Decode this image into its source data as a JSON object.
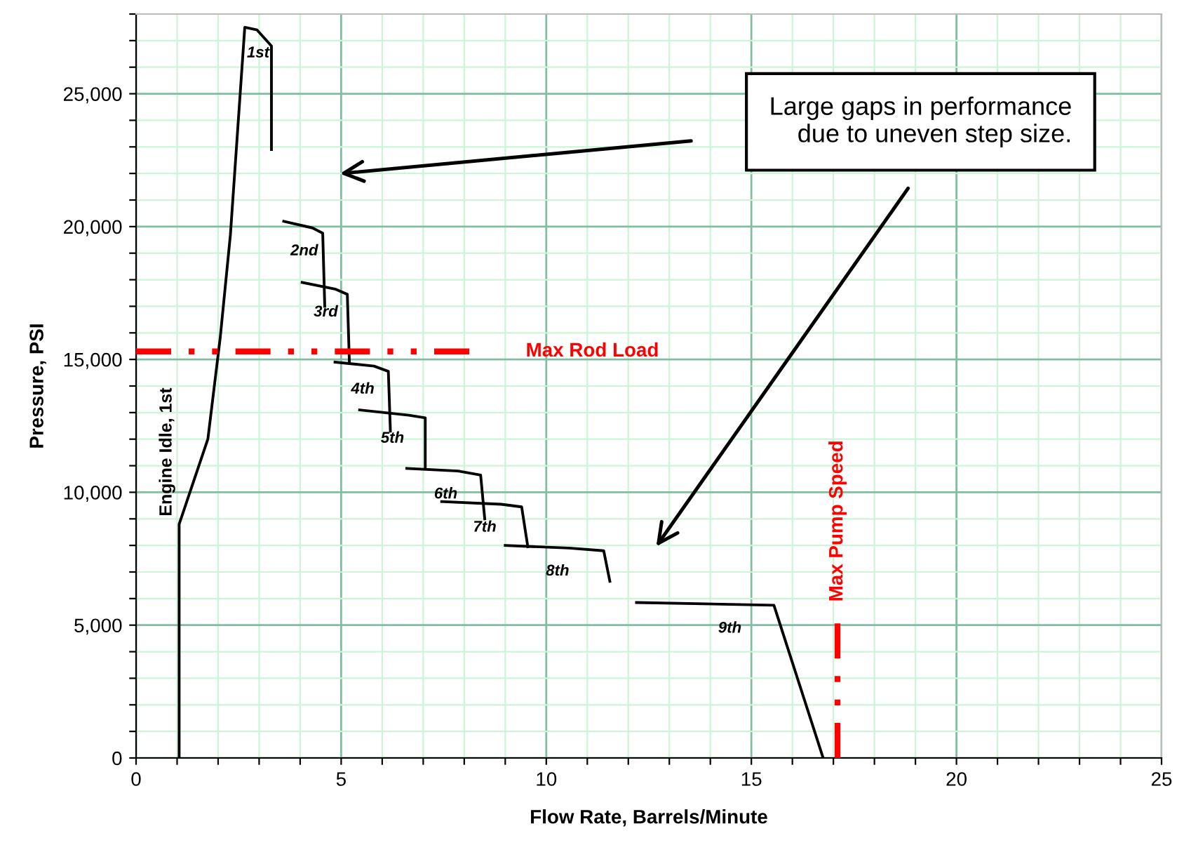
{
  "chart_data": {
    "type": "line",
    "xlabel": "Flow Rate, Barrels/Minute",
    "ylabel": "Pressure, PSI",
    "xlim": [
      0,
      25
    ],
    "ylim": [
      0,
      28000
    ],
    "xticks": [
      0,
      {
        "value": 1,
        "label": null
      },
      {
        "value": 2,
        "label": null
      },
      {
        "value": 3,
        "label": null
      },
      {
        "value": 4,
        "label": null
      },
      5,
      {
        "value": 6,
        "label": null
      },
      {
        "value": 7,
        "label": null
      },
      {
        "value": 8,
        "label": null
      },
      {
        "value": 9,
        "label": null
      },
      10,
      {
        "value": 11,
        "label": null
      },
      {
        "value": 12,
        "label": null
      },
      {
        "value": 13,
        "label": null
      },
      {
        "value": 14,
        "label": null
      },
      15,
      {
        "value": 16,
        "label": null
      },
      {
        "value": 17,
        "label": null
      },
      {
        "value": 18,
        "label": null
      },
      {
        "value": 19,
        "label": null
      },
      20,
      {
        "value": 21,
        "label": null
      },
      {
        "value": 22,
        "label": null
      },
      {
        "value": 23,
        "label": null
      },
      {
        "value": 24,
        "label": null
      },
      25
    ],
    "yticks": [
      0,
      {
        "value": 1000,
        "label": null
      },
      {
        "value": 2000,
        "label": null
      },
      {
        "value": 3000,
        "label": null
      },
      {
        "value": 4000,
        "label": null
      },
      {
        "value": 5000,
        "label": "5,000"
      },
      {
        "value": 6000,
        "label": null
      },
      {
        "value": 7000,
        "label": null
      },
      {
        "value": 8000,
        "label": null
      },
      {
        "value": 9000,
        "label": null
      },
      {
        "value": 10000,
        "label": "10,000"
      },
      {
        "value": 11000,
        "label": null
      },
      {
        "value": 12000,
        "label": null
      },
      {
        "value": 13000,
        "label": null
      },
      {
        "value": 14000,
        "label": null
      },
      {
        "value": 15000,
        "label": "15,000"
      },
      {
        "value": 16000,
        "label": null
      },
      {
        "value": 17000,
        "label": null
      },
      {
        "value": 18000,
        "label": null
      },
      {
        "value": 19000,
        "label": null
      },
      {
        "value": 20000,
        "label": "20,000"
      },
      {
        "value": 21000,
        "label": null
      },
      {
        "value": 22000,
        "label": null
      },
      {
        "value": 23000,
        "label": null
      },
      {
        "value": 24000,
        "label": null
      },
      {
        "value": 25000,
        "label": "25,000"
      },
      {
        "value": 26000,
        "label": null
      },
      {
        "value": 27000,
        "label": null
      },
      {
        "value": 28000,
        "label": null
      }
    ],
    "grid": true,
    "marker": "none",
    "line_style": "solid",
    "series": [
      {
        "color": "#000000",
        "x": [
          1.05,
          1.05,
          1.75,
          2.05,
          2.3,
          2.65,
          2.95,
          3.3,
          3.3
        ],
        "values": [
          0,
          8800,
          12000,
          15800,
          19700,
          27500,
          27400,
          26800,
          22900
        ]
      },
      {
        "color": "#000000",
        "x": [
          3.6,
          4.3,
          4.55,
          4.6
        ],
        "values": [
          20200,
          19950,
          19750,
          17000
        ]
      },
      {
        "color": "#000000",
        "x": [
          4.05,
          4.85,
          5.15,
          5.2
        ],
        "values": [
          17900,
          17650,
          17450,
          14900
        ]
      },
      {
        "color": "#000000",
        "x": [
          4.85,
          5.8,
          6.15,
          6.2
        ],
        "values": [
          14900,
          14750,
          14550,
          12300
        ]
      },
      {
        "color": "#000000",
        "x": [
          5.45,
          6.65,
          7.05,
          7.05
        ],
        "values": [
          13100,
          12900,
          12800,
          10900
        ]
      },
      {
        "color": "#000000",
        "x": [
          6.6,
          7.85,
          8.4,
          8.5
        ],
        "values": [
          10900,
          10800,
          10650,
          9000
        ]
      },
      {
        "color": "#000000",
        "x": [
          7.45,
          8.9,
          9.4,
          9.55
        ],
        "values": [
          9650,
          9550,
          9450,
          7950
        ]
      },
      {
        "color": "#000000",
        "x": [
          9.0,
          10.55,
          11.4,
          11.55
        ],
        "values": [
          8000,
          7900,
          7800,
          6650
        ]
      },
      {
        "color": "#000000",
        "x": [
          12.2,
          15.55,
          16.75
        ],
        "values": [
          5850,
          5750,
          0
        ]
      }
    ],
    "ref_lines": [
      {
        "axis": "y",
        "value": 15300,
        "label": "Max Rod Load",
        "color": "#ff0000",
        "line_style": "dashdot"
      },
      {
        "axis": "x",
        "value": 17.1,
        "label": "Max Pump Speed",
        "color": "#ff0000",
        "line_style": "dashdot"
      }
    ],
    "annotations": [
      "1st",
      "2nd",
      "3rd",
      "4th",
      "5th",
      "6th",
      "7th",
      "8th",
      "9th",
      "Engine Idle, 1st",
      "Large gaps in performance\ndue to uneven step size."
    ]
  }
}
